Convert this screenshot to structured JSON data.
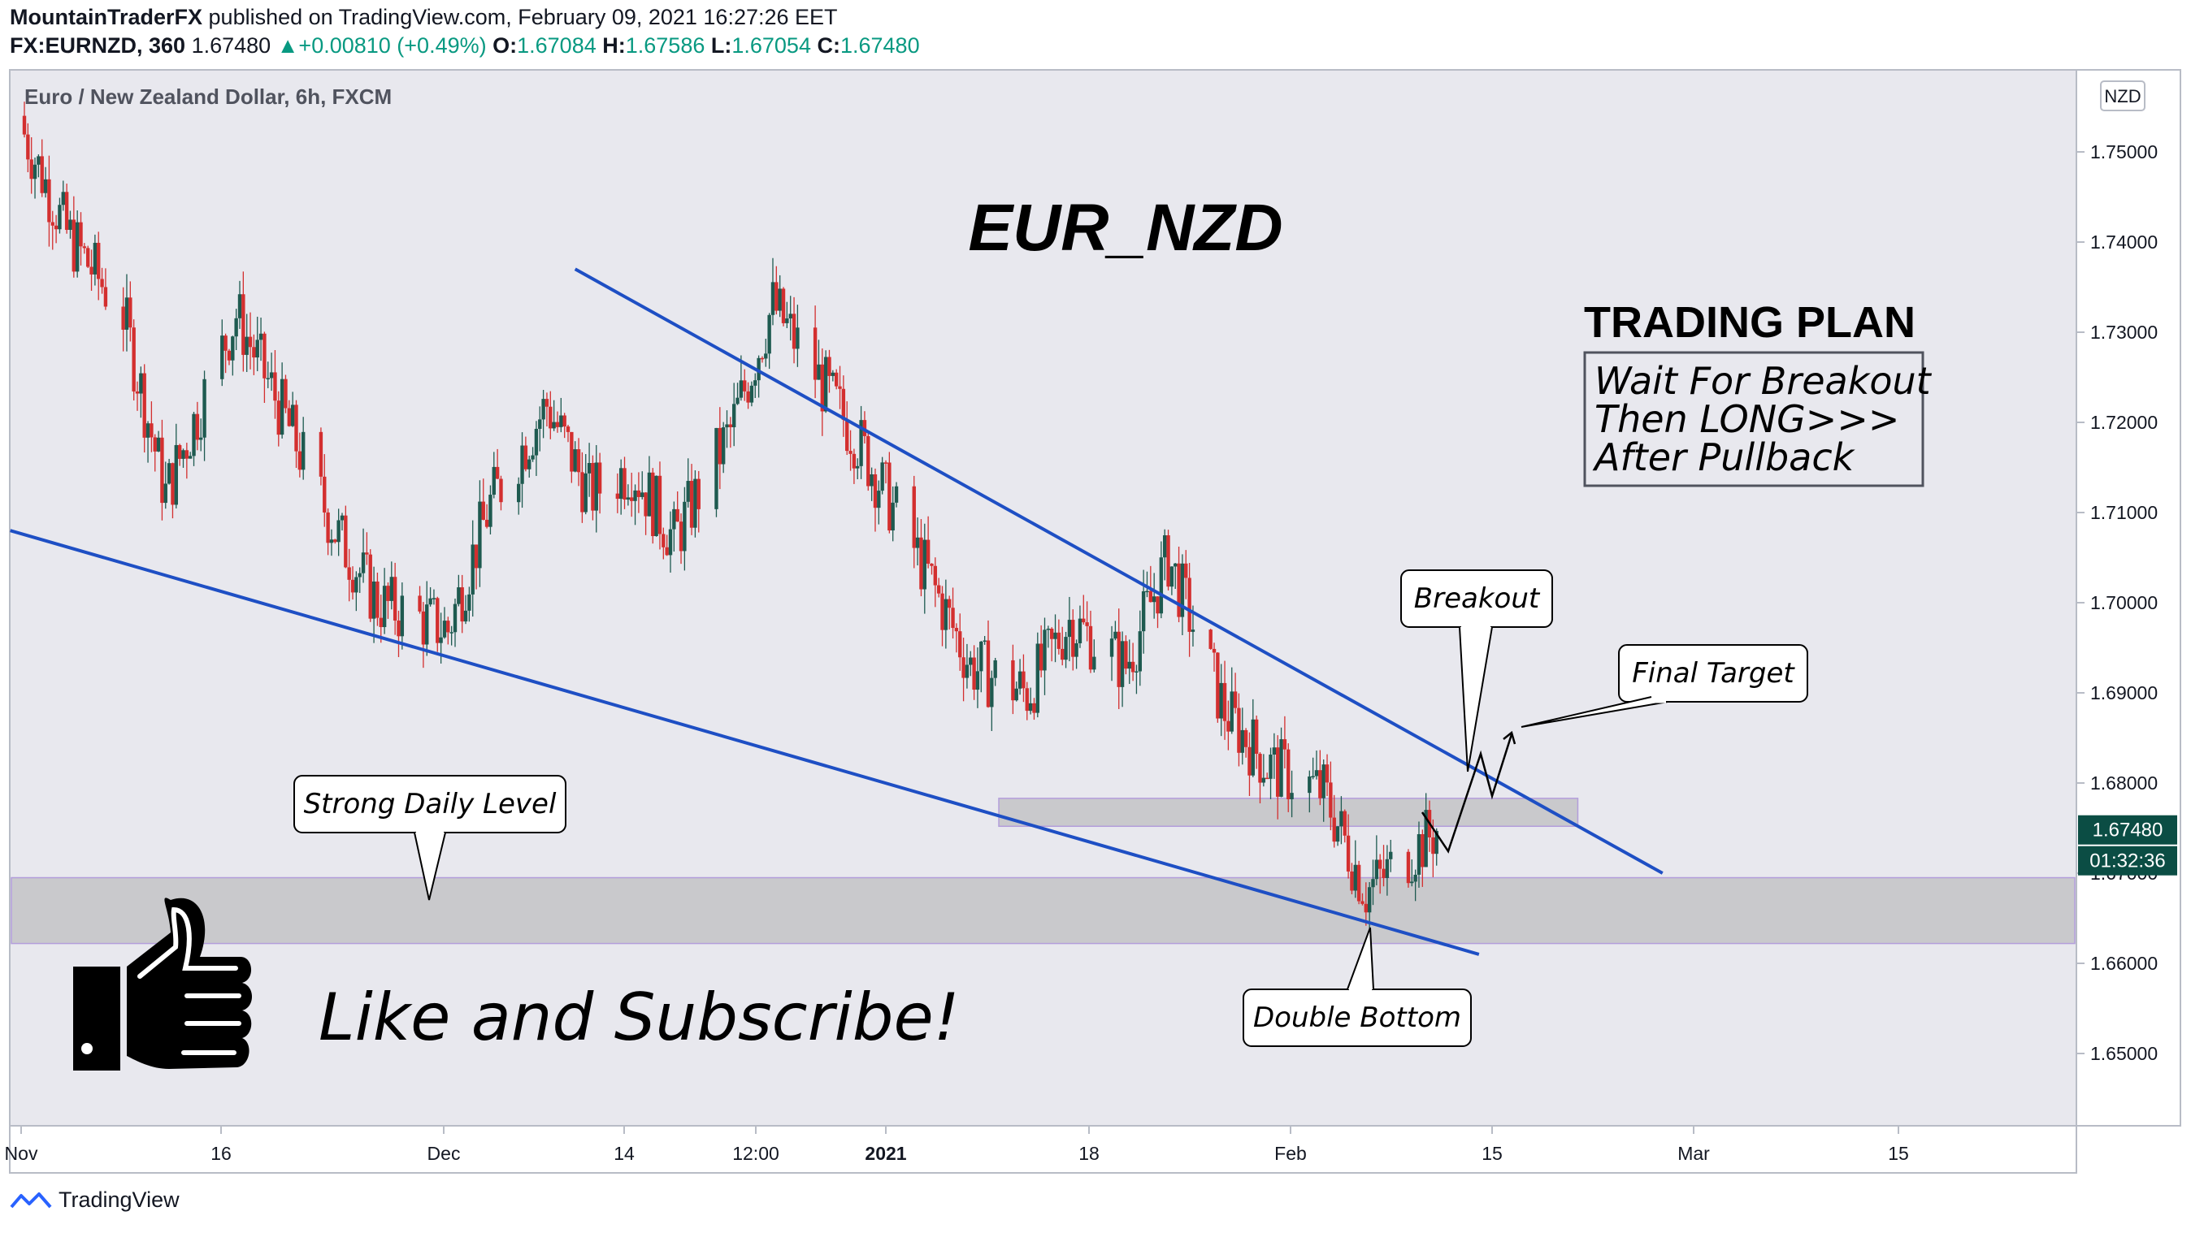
{
  "header": {
    "author": "MountainTraderFX",
    "published_text": "published on TradingView.com, February 09, 2021 16:27:26 EET",
    "symbol": "FX:EURNZD, 360",
    "last": "1.67480",
    "change": "+0.00810 (+0.49%)",
    "change_arrow": "▲",
    "o_label": "O:",
    "o_value": "1.67084",
    "h_label": "H:",
    "h_value": "1.67586",
    "l_label": "L:",
    "l_value": "1.67054",
    "c_label": "C:",
    "c_value": "1.67480"
  },
  "legend": {
    "pair_label": "Euro / New Zealand Dollar, 6h, FXCM"
  },
  "price_axis": {
    "currency_badge": "NZD",
    "ticks": [
      "1.75000",
      "1.74000",
      "1.73000",
      "1.72000",
      "1.71000",
      "1.70000",
      "1.69000",
      "1.68000",
      "1.67000",
      "1.66000",
      "1.65000"
    ],
    "last_price_label": "1.67480",
    "countdown_label": "01:32:36"
  },
  "time_axis": {
    "ticks": [
      "Nov",
      "16",
      "Dec",
      "14",
      "12:00",
      "2021",
      "18",
      "Feb",
      "15",
      "Mar",
      "15"
    ]
  },
  "annotations": {
    "title": "EUR_NZD",
    "plan_title": "TRADING PLAN",
    "plan_lines": [
      "Wait For Breakout",
      "Then LONG>>>",
      "After Pullback"
    ],
    "breakout": "Breakout",
    "final_target": "Final Target",
    "strong_level": "Strong Daily Level",
    "double_bottom": "Double Bottom",
    "cta": "Like and Subscribe!"
  },
  "footer": {
    "brand": "TradingView"
  },
  "colors": {
    "up": "#26a69a",
    "down": "#ef5350",
    "candle_up": "#1e5a50",
    "candle_down": "#d32f2f",
    "trendline": "#1e4fc4",
    "zone_fill": "#c9c9cc",
    "zone_border": "#b39ddb",
    "plot_bg": "#e8e8ee",
    "last_price_bg": "#0b4d44"
  },
  "chart_data": {
    "type": "candlestick",
    "timeframe": "6h",
    "ylim": [
      1.644,
      1.757
    ],
    "x": [
      "2020-11-01",
      "2020-11-04",
      "2020-11-08",
      "2020-11-11",
      "2020-11-16",
      "2020-11-19",
      "2020-11-23",
      "2020-11-26",
      "2020-12-01",
      "2020-12-04",
      "2020-12-08",
      "2020-12-11",
      "2020-12-14",
      "2020-12-17",
      "2020-12-21",
      "2020-12-24",
      "2020-12-30",
      "2021-01-04",
      "2021-01-07",
      "2021-01-11",
      "2021-01-14",
      "2021-01-18",
      "2021-01-21",
      "2021-01-25",
      "2021-01-28",
      "2021-02-01",
      "2021-02-04",
      "2021-02-09"
    ],
    "close": [
      1.752,
      1.741,
      1.732,
      1.712,
      1.732,
      1.722,
      1.708,
      1.7,
      1.697,
      1.711,
      1.722,
      1.712,
      1.715,
      1.707,
      1.719,
      1.733,
      1.718,
      1.703,
      1.693,
      1.69,
      1.698,
      1.693,
      1.705,
      1.688,
      1.682,
      1.679,
      1.668,
      1.6748
    ],
    "zones": [
      {
        "name": "strong-daily-level",
        "y_from": 1.6622,
        "y_to": 1.6695
      },
      {
        "name": "breakout-retest-zone",
        "y_from": 1.6752,
        "y_to": 1.6783
      }
    ],
    "trendlines": [
      {
        "name": "descending-resistance",
        "points": [
          [
            "2020-12-10",
            1.737
          ],
          [
            "2021-02-25",
            1.67
          ]
        ]
      },
      {
        "name": "descending-support",
        "points": [
          [
            "2020-10-31",
            1.708
          ],
          [
            "2021-02-12",
            1.661
          ]
        ]
      }
    ]
  }
}
